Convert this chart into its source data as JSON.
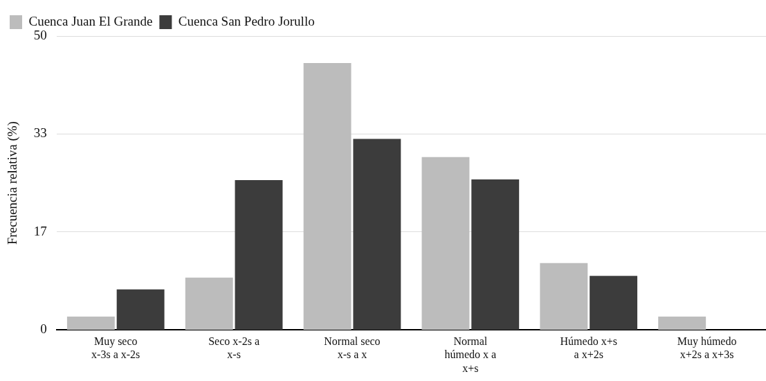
{
  "chart_data": {
    "type": "bar",
    "ylabel": "Frecuencia relativa (%)",
    "categories": [
      "Muy seco x-3s a x-2s",
      "Seco x-2s a x-s",
      "Normal seco x-s a x",
      "Normal húmedo x a x+s",
      "Húmedo x+s a x+2s",
      "Muy húmedo x+2s a x+3s"
    ],
    "series": [
      {
        "name": "Cuenca Juan El Grande",
        "color": "#bcbcbc",
        "values": [
          2.3,
          8.9,
          45.4,
          29.4,
          11.4,
          2.3
        ]
      },
      {
        "name": "Cuenca San Pedro Jorullo",
        "color": "#3c3c3c",
        "values": [
          6.9,
          25.5,
          32.5,
          25.6,
          9.2,
          0
        ]
      }
    ],
    "ylim": [
      0,
      50
    ],
    "yticks": [
      0,
      {
        "value": 16.67,
        "label": "17"
      },
      {
        "value": 33.33,
        "label": "33"
      },
      50
    ],
    "grid": "y",
    "legend": "top left"
  }
}
